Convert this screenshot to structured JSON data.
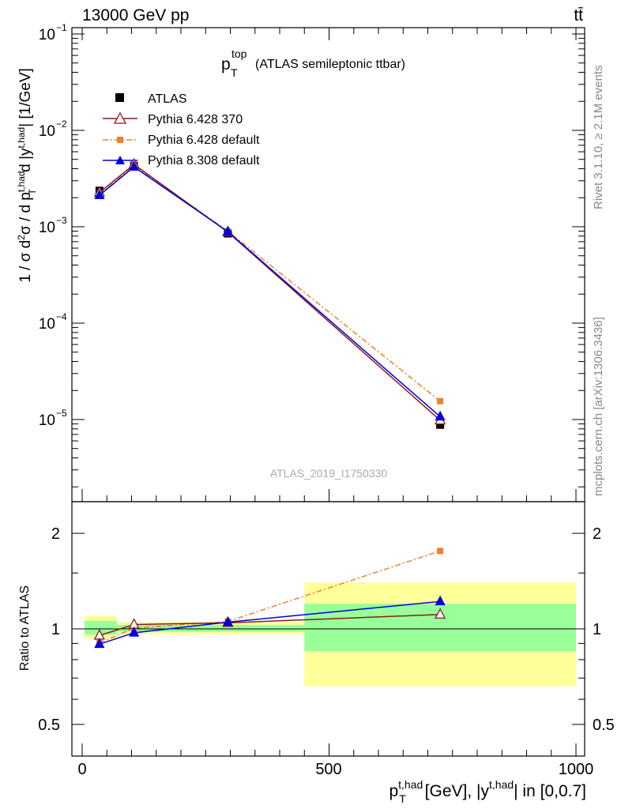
{
  "header": {
    "beam": "13000 GeV pp",
    "process_symbol": "tt̄",
    "side_label_top": "Rivet 3.1.10, ≥ 2.1M events",
    "side_label_bottom": "mcplots.cern.ch [arXiv:1306.3436]",
    "watermark": "ATLAS_2019_I1750330"
  },
  "main_plot": {
    "title_main": "p",
    "title_sup": "top",
    "title_sub": "T",
    "title_rest": "(ATLAS semileptonic ttbar)",
    "ylabel": "1 / σ d²σ / d p_T^{t,had} d |y^{t,had}| [1/GeV]",
    "yticks": [
      {
        "base": "10",
        "exp": "−1"
      },
      {
        "base": "10",
        "exp": "−2"
      },
      {
        "base": "10",
        "exp": "−3"
      },
      {
        "base": "10",
        "exp": "−4"
      },
      {
        "base": "10",
        "exp": "−5"
      }
    ]
  },
  "ratio_plot": {
    "ylabel": "Ratio to ATLAS",
    "yticks": [
      "2",
      "1",
      "0.5"
    ]
  },
  "xaxis": {
    "ticks": [
      "0",
      "500",
      "1000"
    ],
    "label": "p_T^{t,had} [GeV], |y^{t,had}| in [0,0.7]"
  },
  "legend": [
    {
      "label": "ATLAS",
      "color": "#000000",
      "marker": "square-filled",
      "line": "none"
    },
    {
      "label": "Pythia 6.428 370",
      "color": "#8b1a1a",
      "marker": "triangle-open",
      "line": "solid"
    },
    {
      "label": "Pythia 6.428 default",
      "color": "#f08030",
      "marker": "square-filled",
      "line": "dashdot"
    },
    {
      "label": "Pythia 8.308 default",
      "color": "#0000dd",
      "marker": "triangle-filled",
      "line": "solid"
    }
  ],
  "chart_data": {
    "type": "line",
    "title": "p_T^top (ATLAS semileptonic ttbar)",
    "xlabel": "p_T^{t,had} [GeV], |y^{t,had}| in [0,0.7]",
    "ylabel": "1 / σ d²σ / d p_T^{t,had} d |y^{t,had}| [1/GeV]",
    "xlim": [
      -20,
      1020
    ],
    "ylim": [
      1.2e-06,
      0.11
    ],
    "yscale": "log",
    "x": [
      35,
      105,
      295,
      725
    ],
    "series": [
      {
        "name": "ATLAS",
        "values": [
          0.00237,
          0.0043,
          0.00085,
          8.8e-06
        ]
      },
      {
        "name": "Pythia 6.428 370",
        "values": [
          0.00226,
          0.00444,
          0.00088,
          9.8e-06
        ]
      },
      {
        "name": "Pythia 6.428 default",
        "values": [
          0.00214,
          0.00432,
          0.0009,
          1.55e-05
        ]
      },
      {
        "name": "Pythia 8.308 default",
        "values": [
          0.00212,
          0.00418,
          0.00089,
          1.07e-05
        ]
      }
    ],
    "ratio": {
      "ylabel": "Ratio to ATLAS",
      "ylim": [
        0.42,
        2.35
      ],
      "yscale": "log",
      "bands": [
        {
          "x": [
            5,
            70
          ],
          "inner": [
            0.96,
            1.06
          ],
          "outer": [
            0.93,
            1.1
          ]
        },
        {
          "x": [
            70,
            450
          ],
          "inner": [
            0.98,
            1.03
          ],
          "outer": [
            0.96,
            1.05
          ]
        },
        {
          "x": [
            450,
            1000
          ],
          "inner": [
            0.85,
            1.2
          ],
          "outer": [
            0.66,
            1.4
          ]
        }
      ],
      "series": [
        {
          "name": "Pythia 6.428 370",
          "values": [
            0.953,
            1.032,
            1.045,
            1.11
          ]
        },
        {
          "name": "Pythia 6.428 default",
          "values": [
            0.902,
            1.005,
            1.055,
            1.76
          ]
        },
        {
          "name": "Pythia 8.308 default",
          "values": [
            0.895,
            0.972,
            1.05,
            1.22
          ]
        }
      ]
    },
    "grid": false,
    "legend_position": "top-left"
  }
}
